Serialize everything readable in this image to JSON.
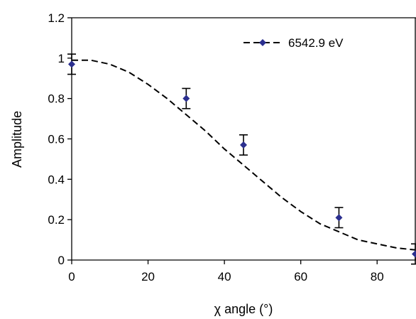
{
  "chart_data": {
    "type": "scatter",
    "xlabel": "χ angle (°)",
    "ylabel": "Amplitude",
    "xlim": [
      0,
      90
    ],
    "ylim": [
      0,
      1.2
    ],
    "x_ticks": [
      "0",
      "20",
      "40",
      "60",
      "80"
    ],
    "y_ticks": [
      "0",
      "0.2",
      "0.4",
      "0.6",
      "0.8",
      "1",
      "1.2"
    ],
    "grid": false,
    "legend_position": "top-right",
    "series": [
      {
        "name": "6542.9 eV",
        "color": "#2b2f8f",
        "marker": "diamond",
        "line_style": "dashed",
        "points": [
          {
            "x": 0,
            "y": 0.97,
            "err": 0.05
          },
          {
            "x": 30,
            "y": 0.8,
            "err": 0.05
          },
          {
            "x": 45,
            "y": 0.57,
            "err": 0.05
          },
          {
            "x": 70,
            "y": 0.21,
            "err": 0.05
          },
          {
            "x": 90,
            "y": 0.03,
            "err": 0.05
          }
        ],
        "fit_curve": {
          "x": [
            0,
            5,
            10,
            15,
            20,
            25,
            30,
            35,
            40,
            45,
            50,
            55,
            60,
            65,
            70,
            75,
            80,
            85,
            90
          ],
          "y": [
            0.99,
            0.99,
            0.97,
            0.93,
            0.87,
            0.8,
            0.72,
            0.64,
            0.55,
            0.47,
            0.39,
            0.31,
            0.24,
            0.18,
            0.14,
            0.1,
            0.08,
            0.06,
            0.05
          ]
        }
      }
    ]
  }
}
